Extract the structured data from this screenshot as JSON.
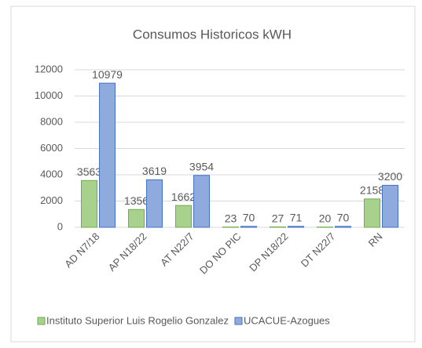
{
  "chart_data": {
    "type": "bar",
    "title": "Consumos Historicos kWH",
    "categories": [
      "AD N7/18",
      "AP N18/22",
      "AT N22/7",
      "DO NO PIC",
      "DP N18/22",
      "DT N22/7",
      "RN"
    ],
    "series": [
      {
        "name": "Instituto Superior Luis Rogelio Gonzalez",
        "color": "#a9d18e",
        "values": [
          3563,
          1356,
          1662,
          23,
          27,
          20,
          2158
        ]
      },
      {
        "name": "UCACUE-Azogues",
        "color": "#8faadc",
        "values": [
          10979,
          3619,
          3954,
          70,
          71,
          70,
          3200
        ]
      }
    ],
    "ylim": [
      0,
      12000
    ],
    "yticks": [
      0,
      2000,
      4000,
      6000,
      8000,
      10000,
      12000
    ],
    "grid": true,
    "legend": "bottom"
  }
}
